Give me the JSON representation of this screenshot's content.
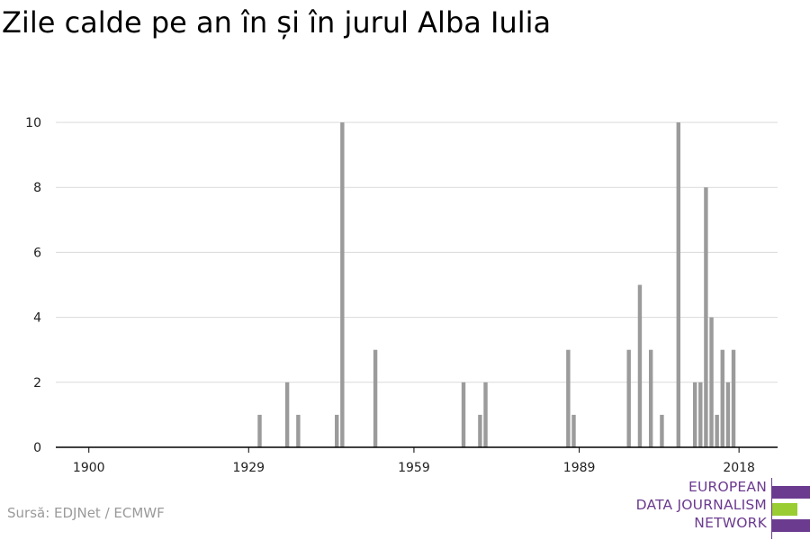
{
  "header": {
    "title": "Zile calde pe an în și în jurul Alba Iulia"
  },
  "footer": {
    "source": "Sursă: EDJNet / ECMWF"
  },
  "logo": {
    "lines": [
      "EUROPEAN",
      "DATA JOURNALISM",
      "NETWORK"
    ],
    "colors": {
      "purple": "#6b3b8f",
      "green": "#9acd32"
    }
  },
  "colors": {
    "bar": "#9b9b9b",
    "grid": "#d9d9d9",
    "axis": "#000000"
  },
  "chart_data": {
    "type": "bar",
    "title": "Zile calde pe an în și în jurul Alba Iulia",
    "xlabel": "",
    "ylabel": "",
    "xlim": [
      1894,
      2025
    ],
    "ylim": [
      0,
      10
    ],
    "xticks": [
      1900,
      1929,
      1959,
      1989,
      2018
    ],
    "yticks": [
      0,
      2,
      4,
      6,
      8,
      10
    ],
    "grid": true,
    "x": [
      1931,
      1936,
      1938,
      1945,
      1946,
      1952,
      1968,
      1971,
      1972,
      1987,
      1988,
      1998,
      2000,
      2002,
      2004,
      2007,
      2010,
      2011,
      2012,
      2013,
      2014,
      2015,
      2016,
      2017,
      2018
    ],
    "values": [
      1,
      2,
      1,
      1,
      10,
      3,
      2,
      1,
      2,
      3,
      1,
      3,
      5,
      3,
      1,
      10,
      2,
      2,
      8,
      4,
      1,
      3,
      2,
      3,
      0
    ]
  }
}
